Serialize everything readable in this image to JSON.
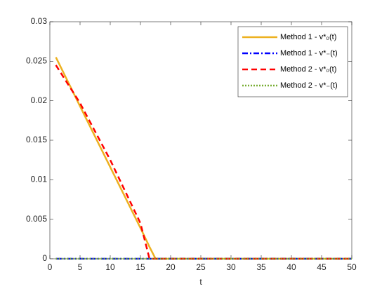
{
  "chart_data": {
    "type": "line",
    "x_label": "t",
    "x": [
      1,
      5,
      10,
      15,
      16.5,
      17.5,
      20,
      25,
      30,
      35,
      40,
      45,
      50
    ],
    "series": [
      {
        "name": "Method 1 - v*₀(t)",
        "color": "#edb120",
        "line_style": "solid",
        "values": [
          0.0255,
          0.0193,
          0.0116,
          0.0039,
          0.0015,
          0,
          0,
          0,
          0,
          0,
          0,
          0,
          0
        ]
      },
      {
        "name": "Method 1 - v*₋(t)",
        "color": "#0000ff",
        "line_style": "dashdot",
        "values": [
          0,
          0,
          0,
          0,
          0,
          0,
          0,
          0,
          0,
          0,
          0,
          0,
          0
        ]
      },
      {
        "name": "Method 2 - v*₀(t)",
        "color": "#ff0000",
        "line_style": "dashed",
        "values": [
          0.0245,
          0.0197,
          0.0125,
          0.0045,
          0,
          0,
          0,
          0,
          0,
          0,
          0,
          0,
          0
        ]
      },
      {
        "name": "Method 2 - v*₋(t)",
        "color": "#77ac30",
        "line_style": "dotted",
        "values": [
          0,
          0,
          0,
          0,
          0,
          0,
          0,
          0,
          0,
          0,
          0,
          0,
          0
        ]
      }
    ],
    "xlim": [
      0,
      50
    ],
    "xticks": [
      0,
      5,
      10,
      15,
      20,
      25,
      30,
      35,
      40,
      45,
      50
    ],
    "ylim": [
      0,
      0.03
    ],
    "yticks": [
      0,
      0.005,
      0.01,
      0.015,
      0.02,
      0.025,
      0.03
    ],
    "legend": "northeast"
  }
}
